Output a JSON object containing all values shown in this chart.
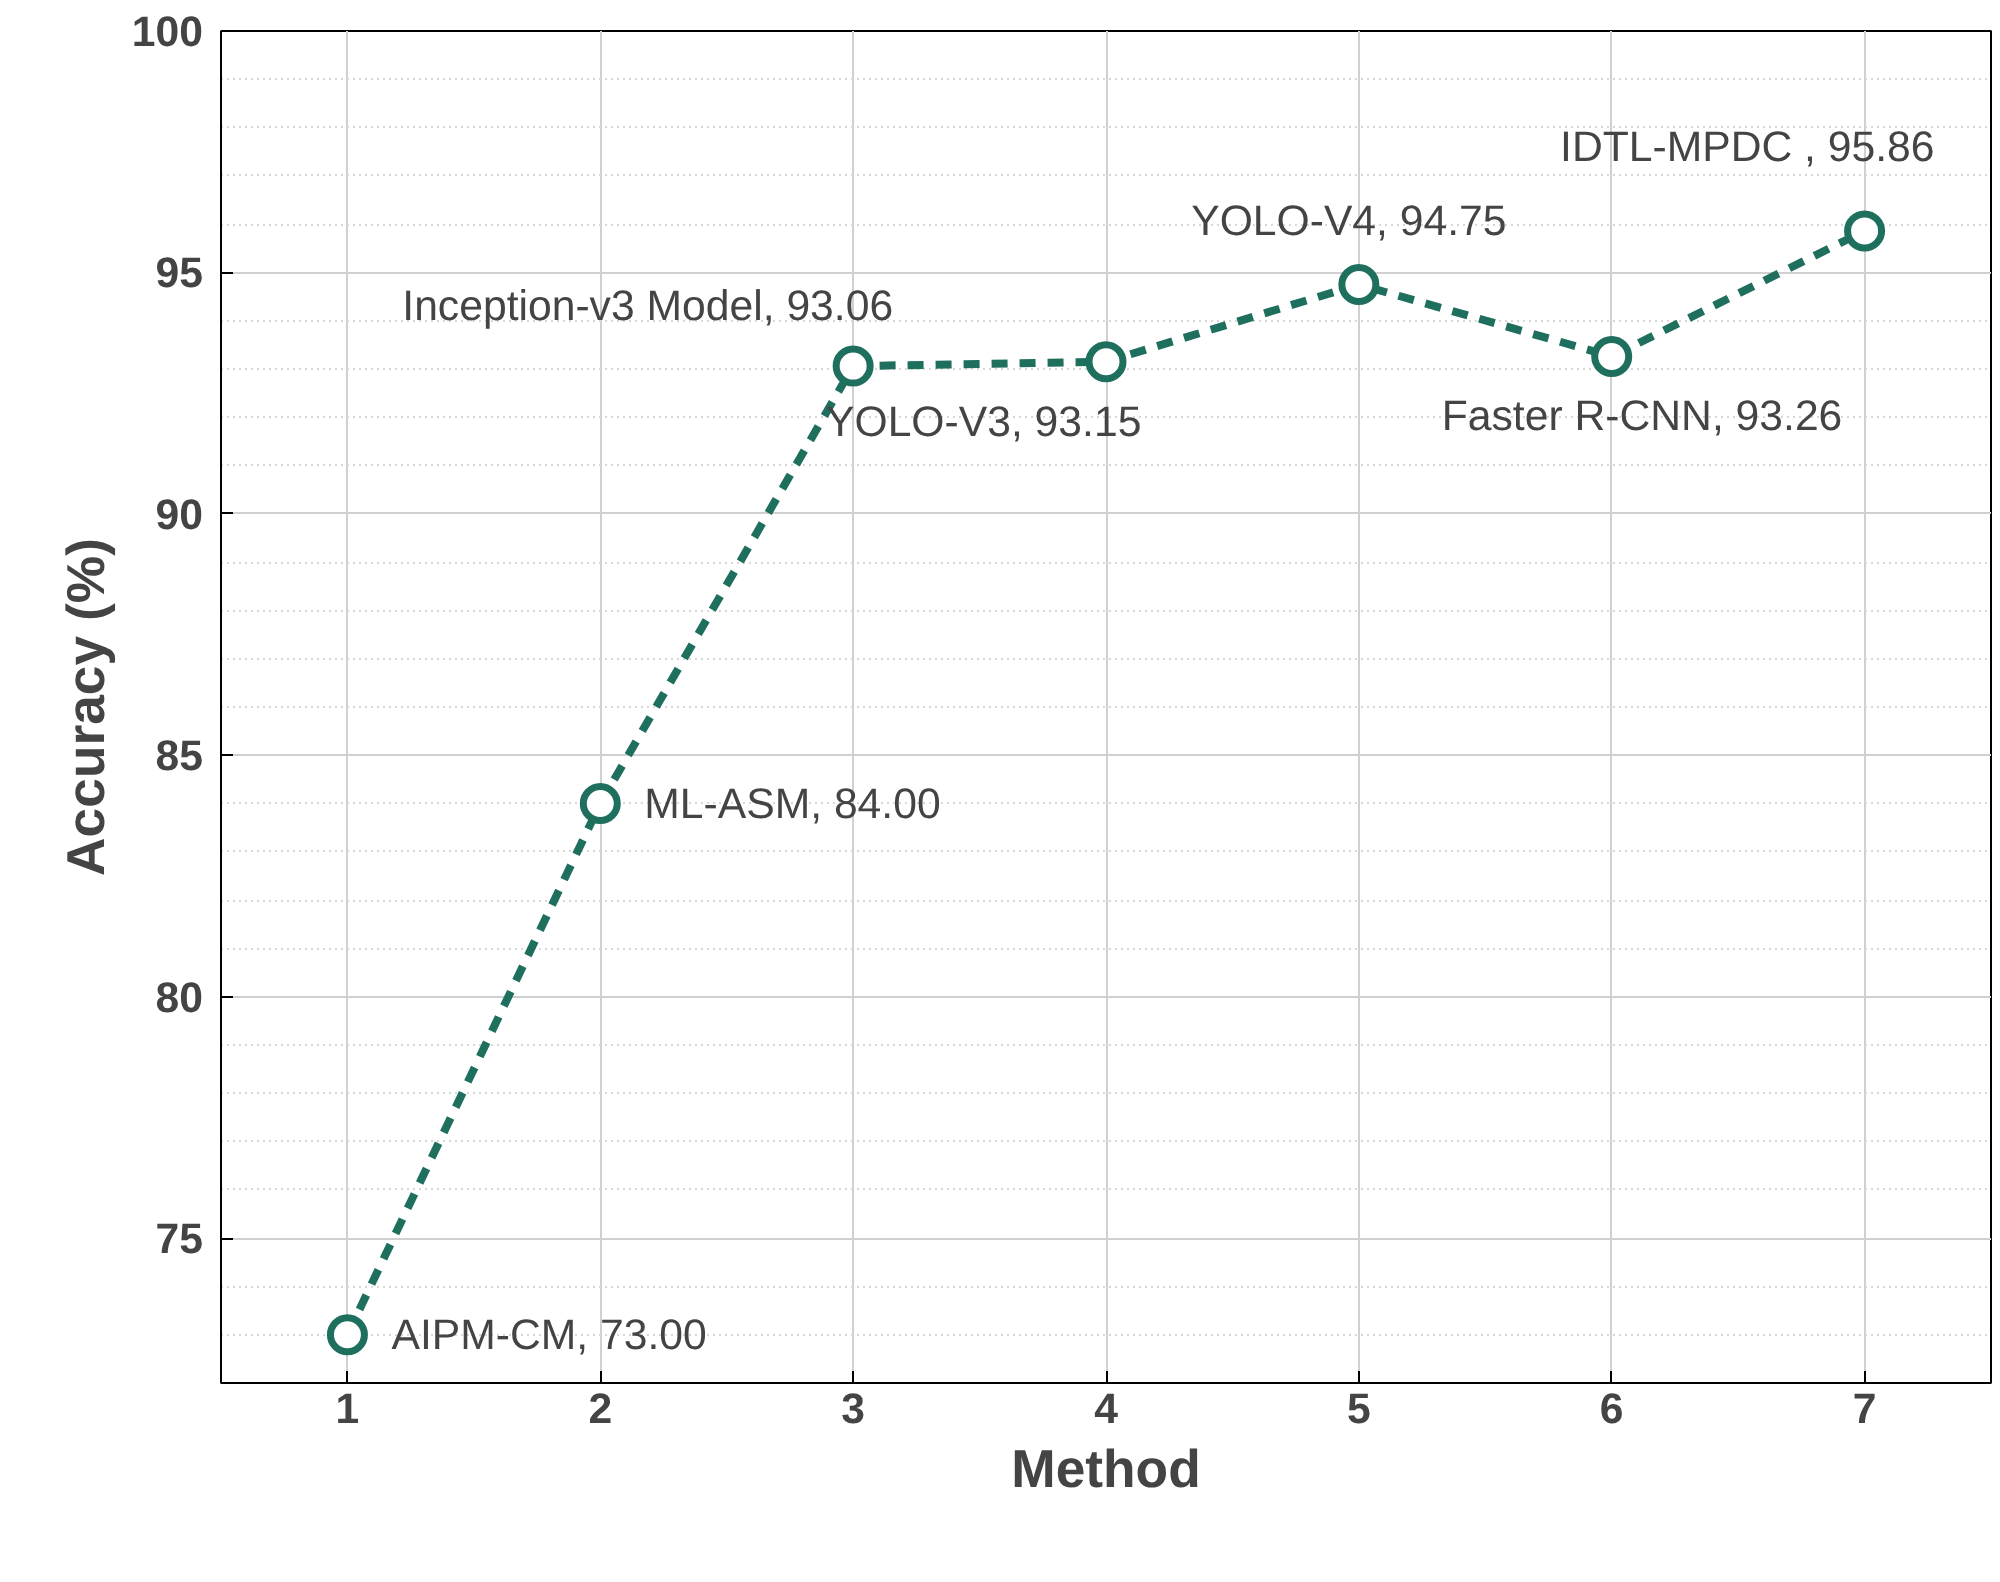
{
  "chart_data": {
    "type": "line",
    "xlabel": "Method",
    "ylabel": "Accuracy (%)",
    "x": [
      1,
      2,
      3,
      4,
      5,
      6,
      7
    ],
    "series": [
      {
        "color": "#1f6f5f",
        "values": [
          73.0,
          84.0,
          93.06,
          93.15,
          94.75,
          93.26,
          95.86
        ]
      }
    ],
    "xlim": [
      0.5,
      7.5
    ],
    "ylim": [
      72,
      100
    ],
    "xticks": [
      1,
      2,
      3,
      4,
      5,
      6,
      7
    ],
    "yticks": [
      75,
      80,
      85,
      90,
      95,
      100
    ],
    "grid": true,
    "marker": "circle",
    "line_style": "dashed",
    "annotations": [
      {
        "text": "AIPM-CM, 73.00",
        "x": 1,
        "y": 73.0
      },
      {
        "text": "ML-ASM, 84.00",
        "x": 2,
        "y": 84.0
      },
      {
        "text": "Inception-v3 Model, 93.06",
        "x": 3,
        "y": 93.06
      },
      {
        "text": "YOLO-V3, 93.15",
        "x": 4,
        "y": 93.15
      },
      {
        "text": "YOLO-V4, 94.75",
        "x": 5,
        "y": 94.75
      },
      {
        "text": "Faster R-CNN, 93.26",
        "x": 6,
        "y": 93.26
      },
      {
        "text": "IDTL-MPDC , 95.86",
        "x": 7,
        "y": 95.86
      }
    ]
  }
}
